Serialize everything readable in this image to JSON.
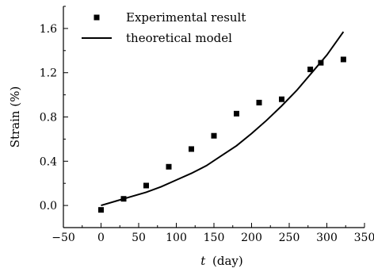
{
  "chart_data": {
    "type": "scatter",
    "x_axis": {
      "label_italic": "t",
      "label_unit": "(day)",
      "range": [
        -50,
        350
      ],
      "ticks": [
        -50,
        0,
        50,
        100,
        150,
        200,
        250,
        300,
        350
      ],
      "tick_labels": [
        "−50",
        "0",
        "50",
        "100",
        "150",
        "200",
        "250",
        "300",
        "350"
      ]
    },
    "y_axis": {
      "label": "Strain (%)",
      "range": [
        -0.2,
        1.8
      ],
      "ticks": [
        0.0,
        0.4,
        0.8,
        1.2,
        1.6
      ],
      "tick_labels": [
        "0.0",
        "0.4",
        "0.8",
        "1.2",
        "1.6"
      ]
    },
    "grid": false,
    "legend": {
      "position": "top-left"
    },
    "series": [
      {
        "name": "Experimental result",
        "kind": "scatter",
        "marker": "square",
        "color": "#000000",
        "x": [
          0,
          30,
          60,
          90,
          120,
          150,
          180,
          210,
          240,
          278,
          292,
          322
        ],
        "y": [
          -0.04,
          0.06,
          0.18,
          0.35,
          0.51,
          0.63,
          0.83,
          0.93,
          0.96,
          1.23,
          1.29,
          1.32
        ]
      },
      {
        "name": "theoretical model",
        "kind": "line",
        "color": "#000000",
        "x": [
          0,
          20,
          40,
          60,
          80,
          100,
          120,
          140,
          160,
          180,
          200,
          220,
          240,
          260,
          280,
          300,
          322
        ],
        "y": [
          0.0,
          0.04,
          0.08,
          0.12,
          0.17,
          0.23,
          0.29,
          0.36,
          0.45,
          0.54,
          0.65,
          0.77,
          0.9,
          1.04,
          1.2,
          1.36,
          1.57
        ]
      }
    ]
  }
}
